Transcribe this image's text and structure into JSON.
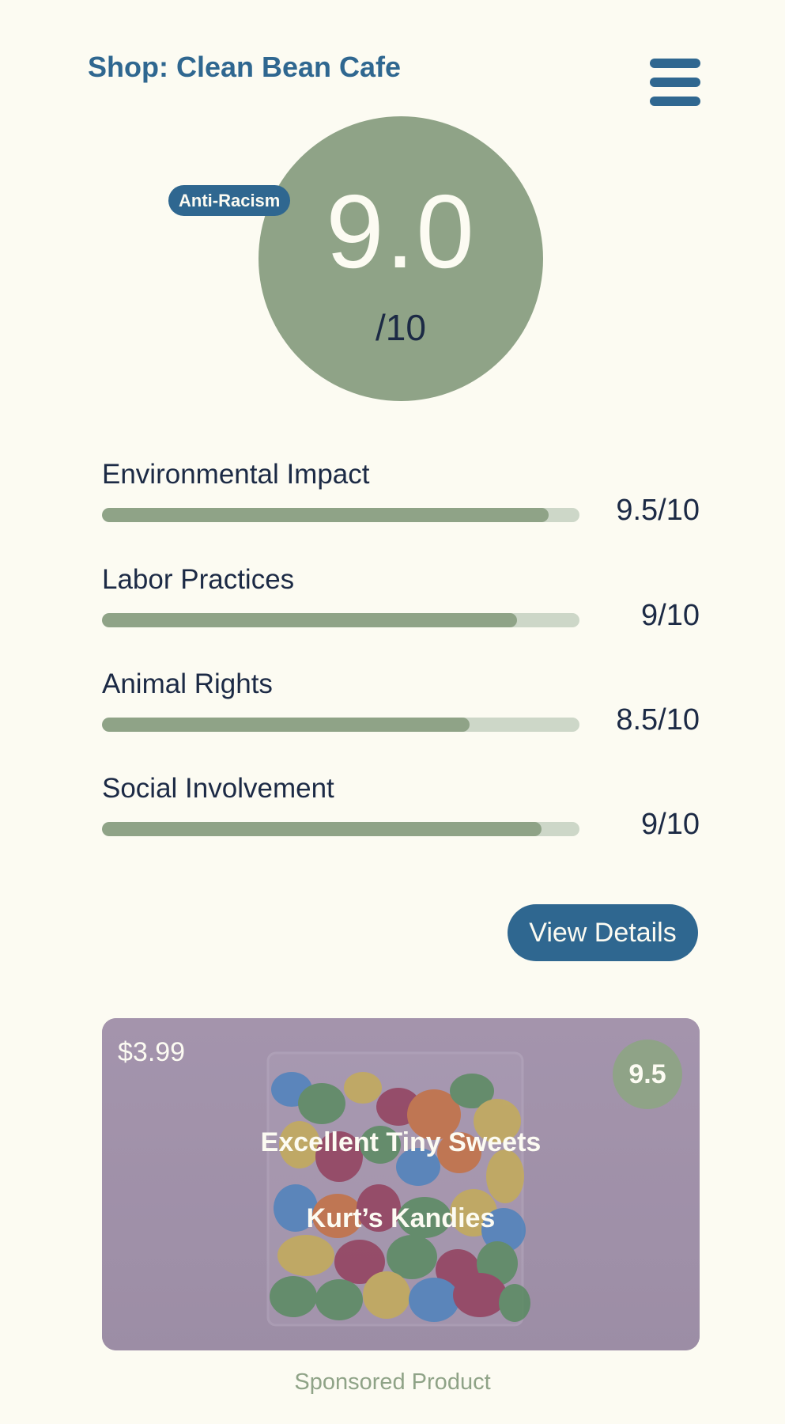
{
  "header": {
    "shop_title": "Shop: Clean Bean Cafe",
    "menu_icon": "hamburger-menu-icon"
  },
  "score": {
    "value": "9.0",
    "denominator": "/10",
    "badge": "Anti-Racism"
  },
  "metrics": [
    {
      "label": "Environmental Impact",
      "value_text": "9.5/10",
      "value": 9.5,
      "fill_fraction": 0.935
    },
    {
      "label": "Labor Practices",
      "value_text": "9/10",
      "value": 9,
      "fill_fraction": 0.87
    },
    {
      "label": "Animal Rights",
      "value_text": "8.5/10",
      "value": 8.5,
      "fill_fraction": 0.77
    },
    {
      "label": "Social Involvement",
      "value_text": "9/10",
      "value": 9,
      "fill_fraction": 0.92
    }
  ],
  "actions": {
    "view_details_label": "View Details"
  },
  "sponsored_product": {
    "price": "$3.99",
    "score": "9.5",
    "name": "Excellent Tiny Sweets",
    "brand": "Kurt’s Kandies",
    "footer_label": "Sponsored Product"
  },
  "colors": {
    "background": "#fcfbf2",
    "primary_blue": "#2f6790",
    "sage_green": "#8fa387",
    "bar_track": "#cdd7c8",
    "text_dark": "#1c2a45",
    "card_purple": "#a596ad"
  }
}
